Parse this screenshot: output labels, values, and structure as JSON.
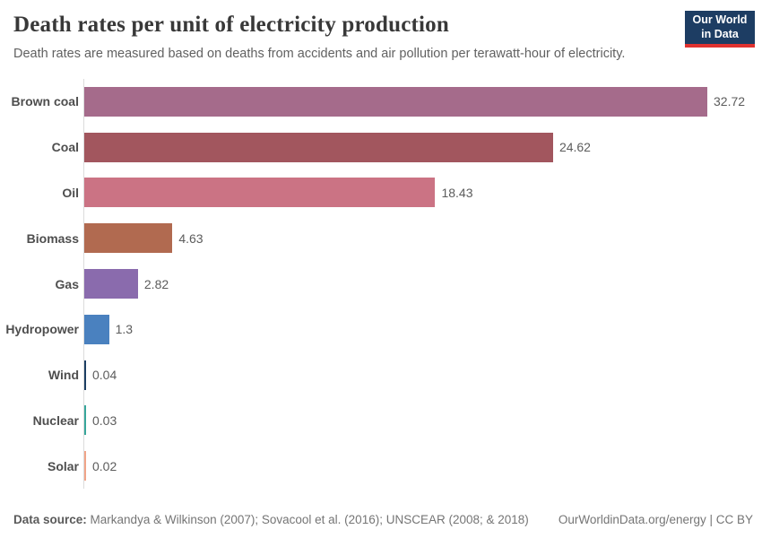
{
  "header": {
    "title": "Death rates per unit of electricity production",
    "subtitle": "Death rates are measured based on deaths from accidents and air pollution per terawatt-hour of electricity.",
    "logo": {
      "line1": "Our World",
      "line2": "in Data",
      "bg_color": "#1d3d63",
      "accent_color": "#e0322f"
    }
  },
  "chart_data": {
    "type": "bar",
    "orientation": "horizontal",
    "title": "Death rates per unit of electricity production",
    "xlabel": "",
    "ylabel": "",
    "xlim": [
      0,
      32.72
    ],
    "grid": false,
    "legend": "none",
    "categories": [
      "Brown coal",
      "Coal",
      "Oil",
      "Biomass",
      "Gas",
      "Hydropower",
      "Wind",
      "Nuclear",
      "Solar"
    ],
    "values": [
      32.72,
      24.62,
      18.43,
      4.63,
      2.82,
      1.3,
      0.04,
      0.03,
      0.02
    ],
    "value_labels": [
      "32.72",
      "24.62",
      "18.43",
      "4.63",
      "2.82",
      "1.3",
      "0.04",
      "0.03",
      "0.02"
    ],
    "bar_colors": [
      "#a56b8b",
      "#a2565e",
      "#cb7384",
      "#b16a50",
      "#8a6bad",
      "#4a81bf",
      "#1d3e63",
      "#38a69b",
      "#f0a489"
    ],
    "axis_line_color": "#dcdcdc"
  },
  "footer": {
    "source_label": "Data source:",
    "source_text": "Markandya & Wilkinson (2007); Sovacool et al. (2016); UNSCEAR (2008; & 2018)",
    "link_text": "OurWorldinData.org/energy | CC BY"
  }
}
